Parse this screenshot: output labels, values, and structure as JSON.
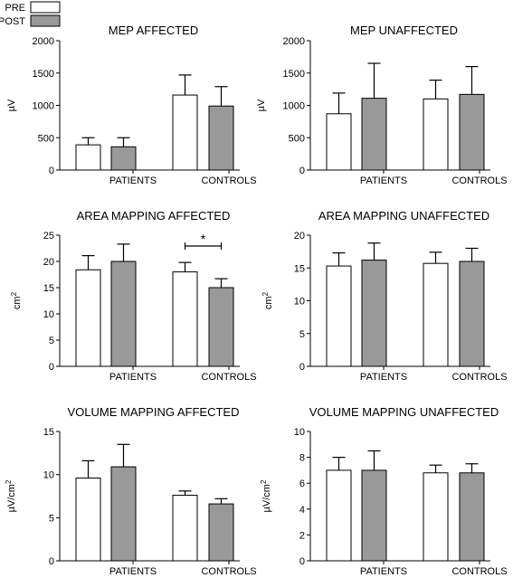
{
  "legend": {
    "items": [
      {
        "label": "PRE",
        "color": "#ffffff"
      },
      {
        "label": "POST",
        "color": "#999999"
      }
    ]
  },
  "chart_data": [
    {
      "type": "bar",
      "title": "MEP AFFECTED",
      "ylabel": "µV",
      "ylim": [
        0,
        2000
      ],
      "yticks": [
        "0",
        "500",
        "1000",
        "1500",
        "2000"
      ],
      "categories": [
        "PATIENTS",
        "CONTROLS"
      ],
      "series": [
        {
          "name": "PRE",
          "values": [
            390,
            1160
          ],
          "errors": [
            110,
            310
          ]
        },
        {
          "name": "POST",
          "values": [
            360,
            990
          ],
          "errors": [
            140,
            300
          ]
        }
      ],
      "annotation": null
    },
    {
      "type": "bar",
      "title": "MEP UNAFFECTED",
      "ylabel": "µV",
      "ylim": [
        0,
        2000
      ],
      "yticks": [
        "0",
        "500",
        "1000",
        "1500",
        "2000"
      ],
      "categories": [
        "PATIENTS",
        "CONTROLS"
      ],
      "series": [
        {
          "name": "PRE",
          "values": [
            870,
            1100
          ],
          "errors": [
            320,
            290
          ]
        },
        {
          "name": "POST",
          "values": [
            1110,
            1170
          ],
          "errors": [
            540,
            430
          ]
        }
      ],
      "annotation": null
    },
    {
      "type": "bar",
      "title": "AREA MAPPING AFFECTED",
      "ylabel": "cm2",
      "ylim": [
        0,
        25
      ],
      "yticks": [
        "0",
        "5",
        "10",
        "15",
        "20",
        "25"
      ],
      "categories": [
        "PATIENTS",
        "CONTROLS"
      ],
      "series": [
        {
          "name": "PRE",
          "values": [
            18.4,
            18.0
          ],
          "errors": [
            2.7,
            1.8
          ]
        },
        {
          "name": "POST",
          "values": [
            20.0,
            15.0
          ],
          "errors": [
            3.3,
            1.7
          ]
        }
      ],
      "annotation": {
        "text": "*",
        "category": 1
      }
    },
    {
      "type": "bar",
      "title": "AREA MAPPING UNAFFECTED",
      "ylabel": "cm2",
      "ylim": [
        0,
        20
      ],
      "yticks": [
        "0",
        "5",
        "10",
        "15",
        "20"
      ],
      "categories": [
        "PATIENTS",
        "CONTROLS"
      ],
      "series": [
        {
          "name": "PRE",
          "values": [
            15.3,
            15.7
          ],
          "errors": [
            2.0,
            1.7
          ]
        },
        {
          "name": "POST",
          "values": [
            16.2,
            16.0
          ],
          "errors": [
            2.6,
            2.0
          ]
        }
      ],
      "annotation": null
    },
    {
      "type": "bar",
      "title": "VOLUME MAPPING AFFECTED",
      "ylabel": "µV/cm2",
      "ylim": [
        0,
        15
      ],
      "yticks": [
        "0",
        "5",
        "10",
        "15"
      ],
      "categories": [
        "PATIENTS",
        "CONTROLS"
      ],
      "series": [
        {
          "name": "PRE",
          "values": [
            9.6,
            7.6
          ],
          "errors": [
            2.0,
            0.5
          ]
        },
        {
          "name": "POST",
          "values": [
            10.9,
            6.6
          ],
          "errors": [
            2.6,
            0.6
          ]
        }
      ],
      "annotation": null
    },
    {
      "type": "bar",
      "title": "VOLUME MAPPING UNAFFECTED",
      "ylabel": "µV/cm2",
      "ylim": [
        0,
        10
      ],
      "yticks": [
        "0",
        "2",
        "4",
        "6",
        "8",
        "10"
      ],
      "categories": [
        "PATIENTS",
        "CONTROLS"
      ],
      "series": [
        {
          "name": "PRE",
          "values": [
            7.0,
            6.8
          ],
          "errors": [
            1.0,
            0.6
          ]
        },
        {
          "name": "POST",
          "values": [
            7.0,
            6.8
          ],
          "errors": [
            1.5,
            0.7
          ]
        }
      ],
      "annotation": null
    }
  ]
}
